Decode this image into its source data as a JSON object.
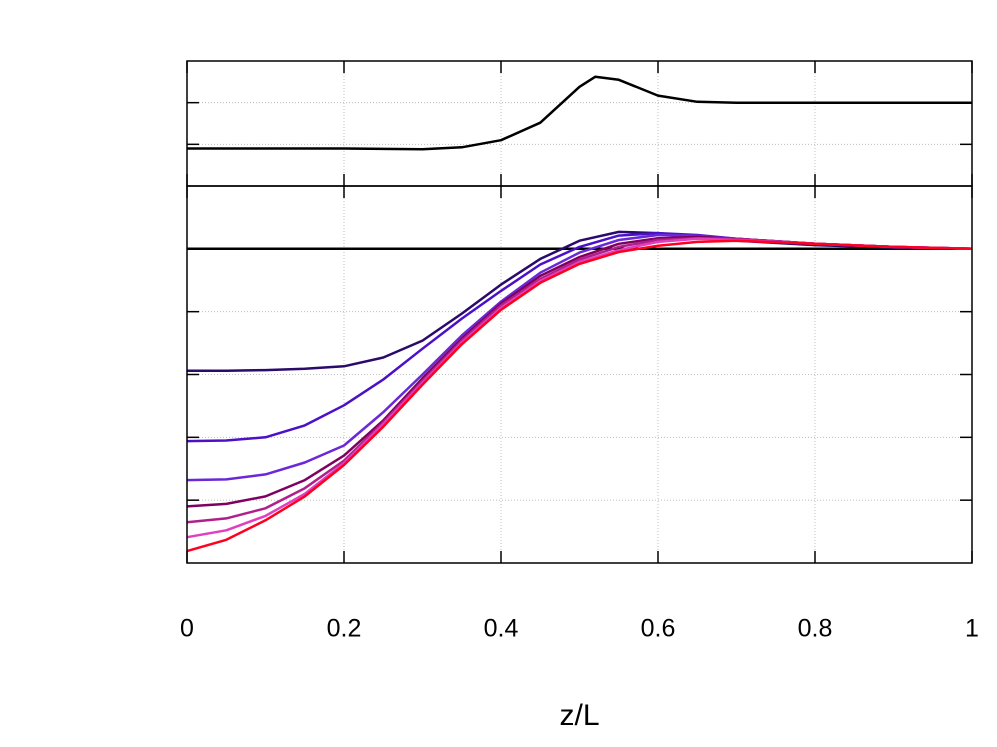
{
  "chart_data": [
    {
      "type": "line",
      "x": [
        0,
        0.1,
        0.2,
        0.3,
        0.35,
        0.4,
        0.45,
        0.5,
        0.52,
        0.55,
        0.6,
        0.65,
        0.7,
        0.8,
        0.9,
        1
      ],
      "series": [
        {
          "color": "#000000",
          "values": [
            0.9,
            0.9,
            0.9,
            0.88,
            0.93,
            1.1,
            1.52,
            2.38,
            2.62,
            2.55,
            2.17,
            2.02,
            2.0,
            2.0,
            2.0,
            2.0
          ]
        }
      ],
      "xlim": [
        0,
        1
      ],
      "xticks": [
        0,
        0.2,
        0.4,
        0.6,
        0.8,
        1
      ],
      "xtick_labels": false,
      "ylim": [
        0,
        3
      ],
      "yticks": [
        1,
        2
      ],
      "grid": true
    },
    {
      "type": "line",
      "x": [
        0,
        0.05,
        0.1,
        0.15,
        0.2,
        0.25,
        0.3,
        0.35,
        0.4,
        0.45,
        0.5,
        0.55,
        0.6,
        0.65,
        0.7,
        0.8,
        0.9,
        1
      ],
      "series": [
        {
          "color": "#000000",
          "values": [
            5,
            5,
            5,
            5,
            5,
            5,
            5,
            5,
            5,
            5,
            5,
            5,
            5,
            5,
            5,
            5,
            5,
            5
          ]
        },
        {
          "color": "#2a0a6a",
          "values": [
            3.06,
            3.06,
            3.07,
            3.09,
            3.13,
            3.27,
            3.54,
            3.97,
            4.43,
            4.84,
            5.13,
            5.27,
            5.25,
            5.19,
            5.13,
            5.06,
            5.02,
            5.0
          ]
        },
        {
          "color": "#4b10c8",
          "values": [
            1.94,
            1.95,
            2.0,
            2.19,
            2.51,
            2.92,
            3.41,
            3.89,
            4.33,
            4.75,
            5.03,
            5.21,
            5.25,
            5.22,
            5.16,
            5.08,
            5.03,
            5.0
          ]
        },
        {
          "color": "#6a28d8",
          "values": [
            1.32,
            1.33,
            1.41,
            1.6,
            1.87,
            2.4,
            3.0,
            3.62,
            4.16,
            4.62,
            4.94,
            5.14,
            5.22,
            5.21,
            5.16,
            5.08,
            5.03,
            5.0
          ]
        },
        {
          "color": "#800060",
          "values": [
            0.9,
            0.94,
            1.06,
            1.32,
            1.71,
            2.27,
            2.94,
            3.57,
            4.13,
            4.57,
            4.87,
            5.08,
            5.17,
            5.19,
            5.16,
            5.08,
            5.03,
            5.0
          ]
        },
        {
          "color": "#b0208a",
          "values": [
            0.65,
            0.71,
            0.87,
            1.19,
            1.63,
            2.24,
            2.9,
            3.54,
            4.1,
            4.52,
            4.83,
            5.03,
            5.14,
            5.17,
            5.16,
            5.08,
            5.03,
            5.0
          ]
        },
        {
          "color": "#e040c0",
          "values": [
            0.41,
            0.52,
            0.75,
            1.1,
            1.59,
            2.21,
            2.87,
            3.51,
            4.06,
            4.49,
            4.79,
            4.98,
            5.11,
            5.16,
            5.14,
            5.08,
            5.03,
            5.0
          ]
        },
        {
          "color": "#ff0020",
          "values": [
            0.19,
            0.37,
            0.68,
            1.06,
            1.56,
            2.17,
            2.84,
            3.48,
            4.03,
            4.46,
            4.76,
            4.95,
            5.05,
            5.11,
            5.13,
            5.08,
            5.03,
            5.0
          ]
        }
      ],
      "xlabel": "z/L",
      "xlim": [
        0,
        1
      ],
      "xticks": [
        0,
        0.2,
        0.4,
        0.6,
        0.8,
        1
      ],
      "xtick_labels": true,
      "ylim": [
        0,
        6
      ],
      "yticks": [
        1,
        2,
        3,
        4,
        5
      ],
      "grid": true
    }
  ]
}
